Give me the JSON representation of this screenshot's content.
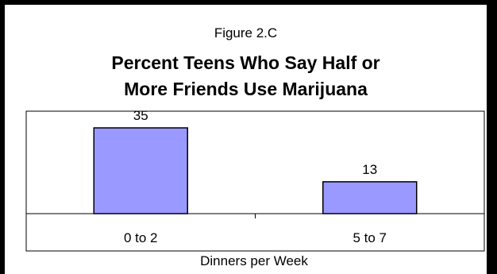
{
  "figure_label": "Figure 2.C",
  "title_lines": [
    "Percent Teens Who Say Half or",
    "More Friends Use Marijuana"
  ],
  "chart_data": {
    "type": "bar",
    "categories": [
      "0 to 2",
      "5 to 7"
    ],
    "values": [
      35,
      13
    ],
    "data_labels": [
      "35",
      "13"
    ],
    "title": "Percent Teens Who Say Half or More Friends Use Marijuana",
    "xlabel": "Dinners per Week",
    "ylabel": "",
    "ylim": [
      0,
      40
    ],
    "grid": false,
    "bar_color": "#9999ff",
    "bar_edge_color": "#000000"
  }
}
